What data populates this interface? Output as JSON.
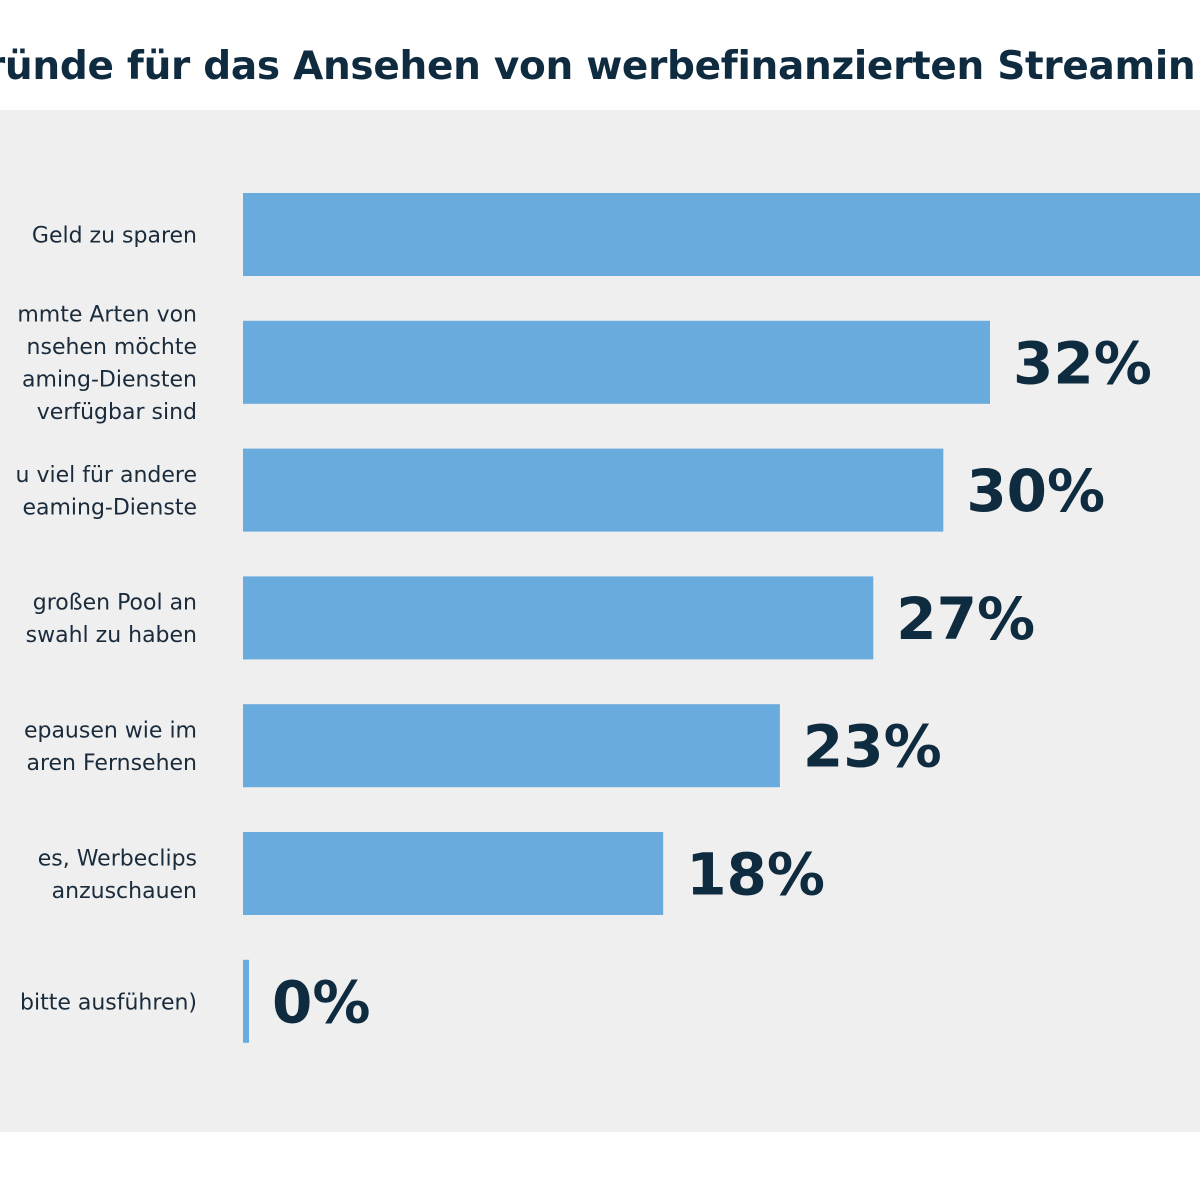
{
  "chart_data": {
    "type": "bar",
    "orientation": "horizontal",
    "title": "ründe für das Ansehen von werbefinanzierten Streamin",
    "categories": [
      [
        "Geld zu sparen"
      ],
      [
        "mmte Arten von",
        "nsehen möchte",
        "aming-Diensten",
        "verfügbar sind"
      ],
      [
        "u viel für andere",
        "eaming-Dienste"
      ],
      [
        "großen Pool an",
        "swahl zu haben"
      ],
      [
        "epausen wie im",
        "aren Fernsehen"
      ],
      [
        "es, Werbeclips",
        "anzuschauen"
      ],
      [
        "bitte ausführen)"
      ]
    ],
    "values": [
      null,
      32,
      30,
      27,
      23,
      18,
      0
    ],
    "value_labels": [
      "",
      "32%",
      "30%",
      "27%",
      "23%",
      "18%",
      "0%"
    ],
    "xlim": [
      0,
      32
    ],
    "bar_color": "#69abdd",
    "background_color": "#efefef",
    "grid": false,
    "legend": "none"
  }
}
